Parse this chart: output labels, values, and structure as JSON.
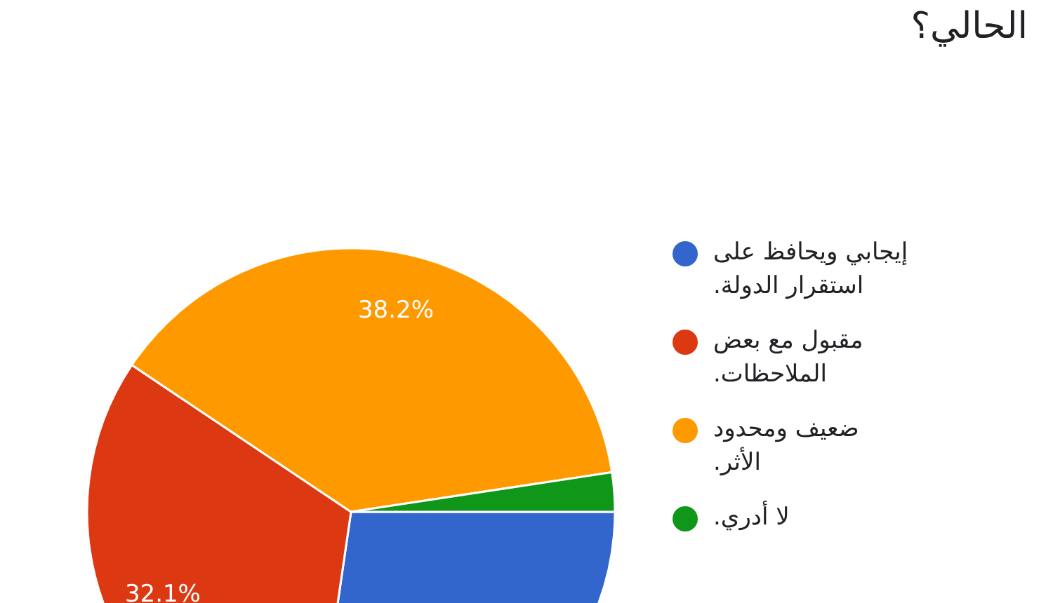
{
  "chart_data": {
    "type": "pie",
    "title": "الحالي؟",
    "categories": [
      "إيجابي ويحافظ على استقرار الدولة.",
      "مقبول مع بعض الملاحظات.",
      "ضعيف ومحدود الأثر.",
      "لا أدري."
    ],
    "values": [
      27.3,
      32.1,
      38.2,
      2.4
    ],
    "colors": [
      "#3366cc",
      "#dc3912",
      "#ff9900",
      "#109618"
    ],
    "value_labels": [
      null,
      "32.1%",
      "38.2%",
      null
    ],
    "legend": "right"
  }
}
